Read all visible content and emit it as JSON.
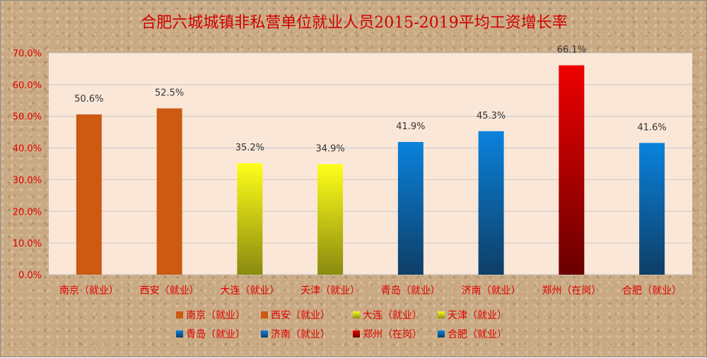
{
  "chart_data": {
    "type": "bar",
    "title": "合肥六城城镇非私营单位就业人员2015-2019平均工资增长率",
    "categories": [
      "南京（就业）",
      "西安（就业）",
      "大连（就业）",
      "天津（就业）",
      "青岛（就业）",
      "济南（就业）",
      "郑州（在岗）",
      "合肥（就业）"
    ],
    "values": [
      50.6,
      52.5,
      35.2,
      34.9,
      41.9,
      45.3,
      66.1,
      41.6
    ],
    "data_labels": [
      "50.6%",
      "52.5%",
      "35.2%",
      "34.9%",
      "41.9%",
      "45.3%",
      "66.1%",
      "41.6%"
    ],
    "ylim": [
      0,
      70
    ],
    "yticks": [
      0,
      10,
      20,
      30,
      40,
      50,
      60,
      70
    ],
    "ytick_labels": [
      "0.0%",
      "10.0%",
      "20.0%",
      "30.0%",
      "40.0%",
      "50.0%",
      "60.0%",
      "70.0%"
    ],
    "grid": true,
    "legend_position": "bottom",
    "colors": {
      "orange": "#cc5a12",
      "yellow_top": "#ffff1a",
      "yellow_bottom": "#8a8a10",
      "blue_top": "#0a82dc",
      "blue_bottom": "#0e3e66",
      "red_top": "#ee0000",
      "red_bottom": "#6a0000",
      "plot_background": "#fbe7d8",
      "text_red": "#e00000"
    },
    "bar_styles": [
      "orange",
      "orange",
      "yellow",
      "yellow",
      "blue",
      "blue",
      "red",
      "blue"
    ]
  }
}
